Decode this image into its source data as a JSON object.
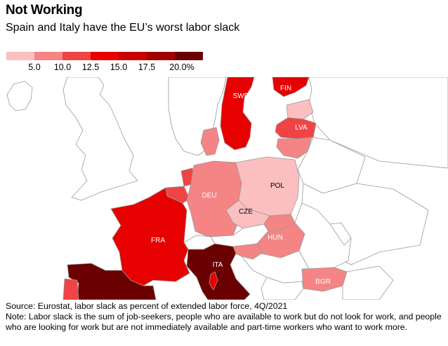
{
  "header": {
    "title": "Not Working",
    "subtitle": "Spain and Italy have the EU’s worst labor slack"
  },
  "legend": {
    "colors": [
      "#fcbfbf",
      "#f58484",
      "#f04444",
      "#e60000",
      "#c80000",
      "#a00000",
      "#6a0000"
    ],
    "ticks": [
      "5.0",
      "10.0",
      "12.5",
      "15.0",
      "17.5",
      "20.0%"
    ]
  },
  "map": {
    "country_labels": {
      "swe": "SWE",
      "fin": "FIN",
      "lva": "LVA",
      "deu": "DEU",
      "pol": "POL",
      "cze": "CZE",
      "fra": "FRA",
      "hun": "HUN",
      "ita": "ITA",
      "bgr": "BGR"
    },
    "colors": {
      "none": "#ffffff",
      "bin1": "#fcbfbf",
      "bin2": "#f58484",
      "bin3": "#f04444",
      "bin4": "#e60000",
      "bin5": "#c80000",
      "bin7": "#6a0000"
    }
  },
  "footer": {
    "source": "Source: Eurostat, labor slack as percent of extended labor force, 4Q/2021",
    "note": "Note: Labor slack is the sum of job-seekers, people who are available to work but do not look for work, and people who are looking for work but are not immediately available and part-time workers who want to work more."
  }
}
